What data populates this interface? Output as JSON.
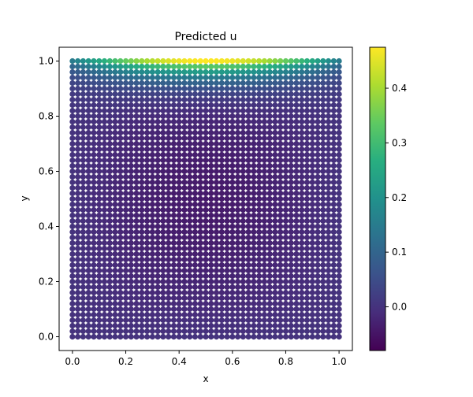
{
  "chart_data": {
    "type": "scatter",
    "title": "Predicted u",
    "xlabel": "x",
    "ylabel": "y",
    "xlim": [
      -0.05,
      1.05
    ],
    "ylim": [
      -0.05,
      1.05
    ],
    "x_ticks": [
      0.0,
      0.2,
      0.4,
      0.6,
      0.8,
      1.0
    ],
    "x_tick_labels": [
      "0.0",
      "0.2",
      "0.4",
      "0.6",
      "0.8",
      "1.0"
    ],
    "y_ticks": [
      0.0,
      0.2,
      0.4,
      0.6,
      0.8,
      1.0
    ],
    "y_tick_labels": [
      "0.0",
      "0.2",
      "0.4",
      "0.6",
      "0.8",
      "1.0"
    ],
    "grid": false,
    "colormap": "viridis",
    "colorbar": {
      "min": -0.08,
      "max": 0.475,
      "ticks": [
        0.0,
        0.1,
        0.2,
        0.3,
        0.4
      ],
      "tick_labels": [
        "0.0",
        "0.1",
        "0.2",
        "0.3",
        "0.4"
      ]
    },
    "point_grid": {
      "x_start": 0.0,
      "x_end": 1.0,
      "x_count": 51,
      "y_start": 0.0,
      "y_end": 1.0,
      "y_count": 51
    },
    "value_summary": {
      "top_edge_center_max": 0.475,
      "top_corners": 0.15,
      "interior_min": -0.08,
      "bottom_edge": 0.0
    }
  }
}
